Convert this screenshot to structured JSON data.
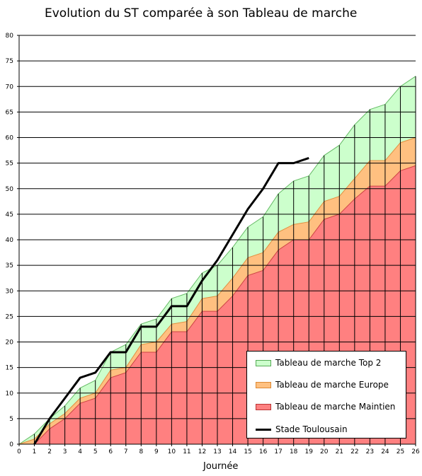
{
  "chart_data": {
    "type": "area",
    "title": "Evolution du ST comparée à son Tableau de marche",
    "xlabel": "Journée",
    "ylabel": "",
    "xlim": [
      0,
      26
    ],
    "ylim": [
      0,
      80
    ],
    "x": [
      0,
      1,
      2,
      3,
      4,
      5,
      6,
      7,
      8,
      9,
      10,
      11,
      12,
      13,
      14,
      15,
      16,
      17,
      18,
      19,
      20,
      21,
      22,
      23,
      24,
      25,
      26
    ],
    "xticks": [
      0,
      1,
      2,
      3,
      4,
      5,
      6,
      7,
      8,
      9,
      10,
      11,
      12,
      13,
      14,
      15,
      16,
      17,
      18,
      19,
      20,
      21,
      22,
      23,
      24,
      25,
      26
    ],
    "yticks": [
      0,
      5,
      10,
      15,
      20,
      25,
      30,
      35,
      40,
      45,
      50,
      55,
      60,
      65,
      70,
      75,
      80
    ],
    "grid": "horizontal",
    "legend_position": "bottom-right",
    "series": [
      {
        "name": "Tableau de marche Top 2",
        "kind": "area",
        "color": "#ccffcc",
        "values": [
          0,
          2,
          5,
          7.5,
          11,
          12.5,
          18,
          19.5,
          23.5,
          24.5,
          28.5,
          29.5,
          33.5,
          35,
          38.5,
          42.5,
          44.5,
          49,
          51.5,
          52.5,
          56.5,
          58.5,
          62.5,
          65.5,
          66.5,
          70,
          72
        ]
      },
      {
        "name": "Tableau de marche Europe",
        "kind": "area",
        "color": "#ffc080",
        "values": [
          0,
          1,
          4,
          6,
          9,
          10,
          14.5,
          15,
          19.5,
          20,
          23.5,
          24,
          28.5,
          29,
          32.5,
          36.5,
          37.5,
          41.5,
          43,
          43.5,
          47.5,
          48.5,
          52,
          55.5,
          55.5,
          59,
          60
        ]
      },
      {
        "name": "Tableau de marche Maintien",
        "kind": "area",
        "color": "#ff8080",
        "values": [
          0,
          0,
          3,
          5,
          8,
          9,
          13,
          14,
          18,
          18,
          22,
          22,
          26,
          26,
          29,
          33,
          34,
          38,
          40,
          40,
          44,
          45,
          48,
          50.5,
          50.5,
          53.5,
          54.5
        ]
      },
      {
        "name": "Stade Toulousain",
        "kind": "line",
        "color": "#000000",
        "x": [
          1,
          2,
          3,
          4,
          5,
          6,
          7,
          8,
          9,
          10,
          11,
          12,
          13,
          14,
          15,
          16,
          17,
          18,
          19
        ],
        "values": [
          0,
          5,
          9,
          13,
          14,
          18,
          18,
          23,
          23,
          27,
          27,
          32,
          36,
          41,
          46,
          50,
          55,
          55,
          56
        ]
      }
    ]
  }
}
